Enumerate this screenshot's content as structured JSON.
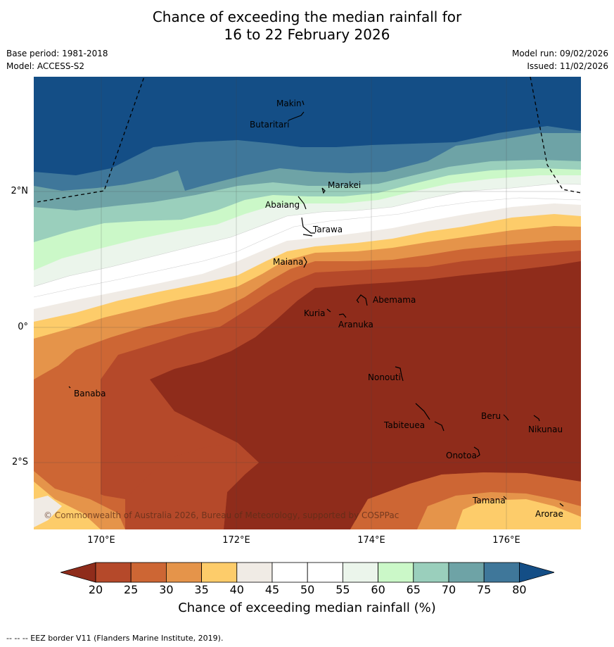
{
  "title_line1": "Chance of exceeding the median rainfall for",
  "title_line2": "16 to 22 February 2026",
  "base_period": "Base period: 1981-2018",
  "model": "Model: ACCESS-S2",
  "model_run": "Model run: 09/02/2026",
  "issued": "Issued: 11/02/2026",
  "copyright": "© Commonwealth of Australia 2026, Bureau of Meteorology, supported by COSPPac",
  "lat_labels": [
    "2°N",
    "0°",
    "2°S"
  ],
  "lon_labels": [
    "170°E",
    "172°E",
    "174°E",
    "176°E"
  ],
  "places": [
    "Makin",
    "Butaritari",
    "Marakei",
    "Abaiang",
    "Tarawa",
    "Maiana",
    "Abemama",
    "Kuria",
    "Aranuka",
    "Banaba",
    "Nonouti",
    "Beru",
    "Nikunau",
    "Tabiteuea",
    "Onotoa",
    "Tamana",
    "Arorae"
  ],
  "colorbar": {
    "ticks": [
      "20",
      "25",
      "30",
      "35",
      "40",
      "45",
      "50",
      "55",
      "60",
      "65",
      "70",
      "75",
      "80"
    ],
    "title": "Chance of exceeding median rainfall (%)",
    "colors": [
      "#8f2c1b",
      "#b5492a",
      "#cd6634",
      "#e5944a",
      "#fdcc6a",
      "#f0ebe5",
      "#ffffff",
      "#ffffff",
      "#ebf5eb",
      "#cbf8c8",
      "#9acfbc",
      "#6ea3a6",
      "#3f779a",
      "#144e86"
    ]
  },
  "footer": "-- -- -- EEZ border V11 (Flanders Marine Institute, 2019)."
}
